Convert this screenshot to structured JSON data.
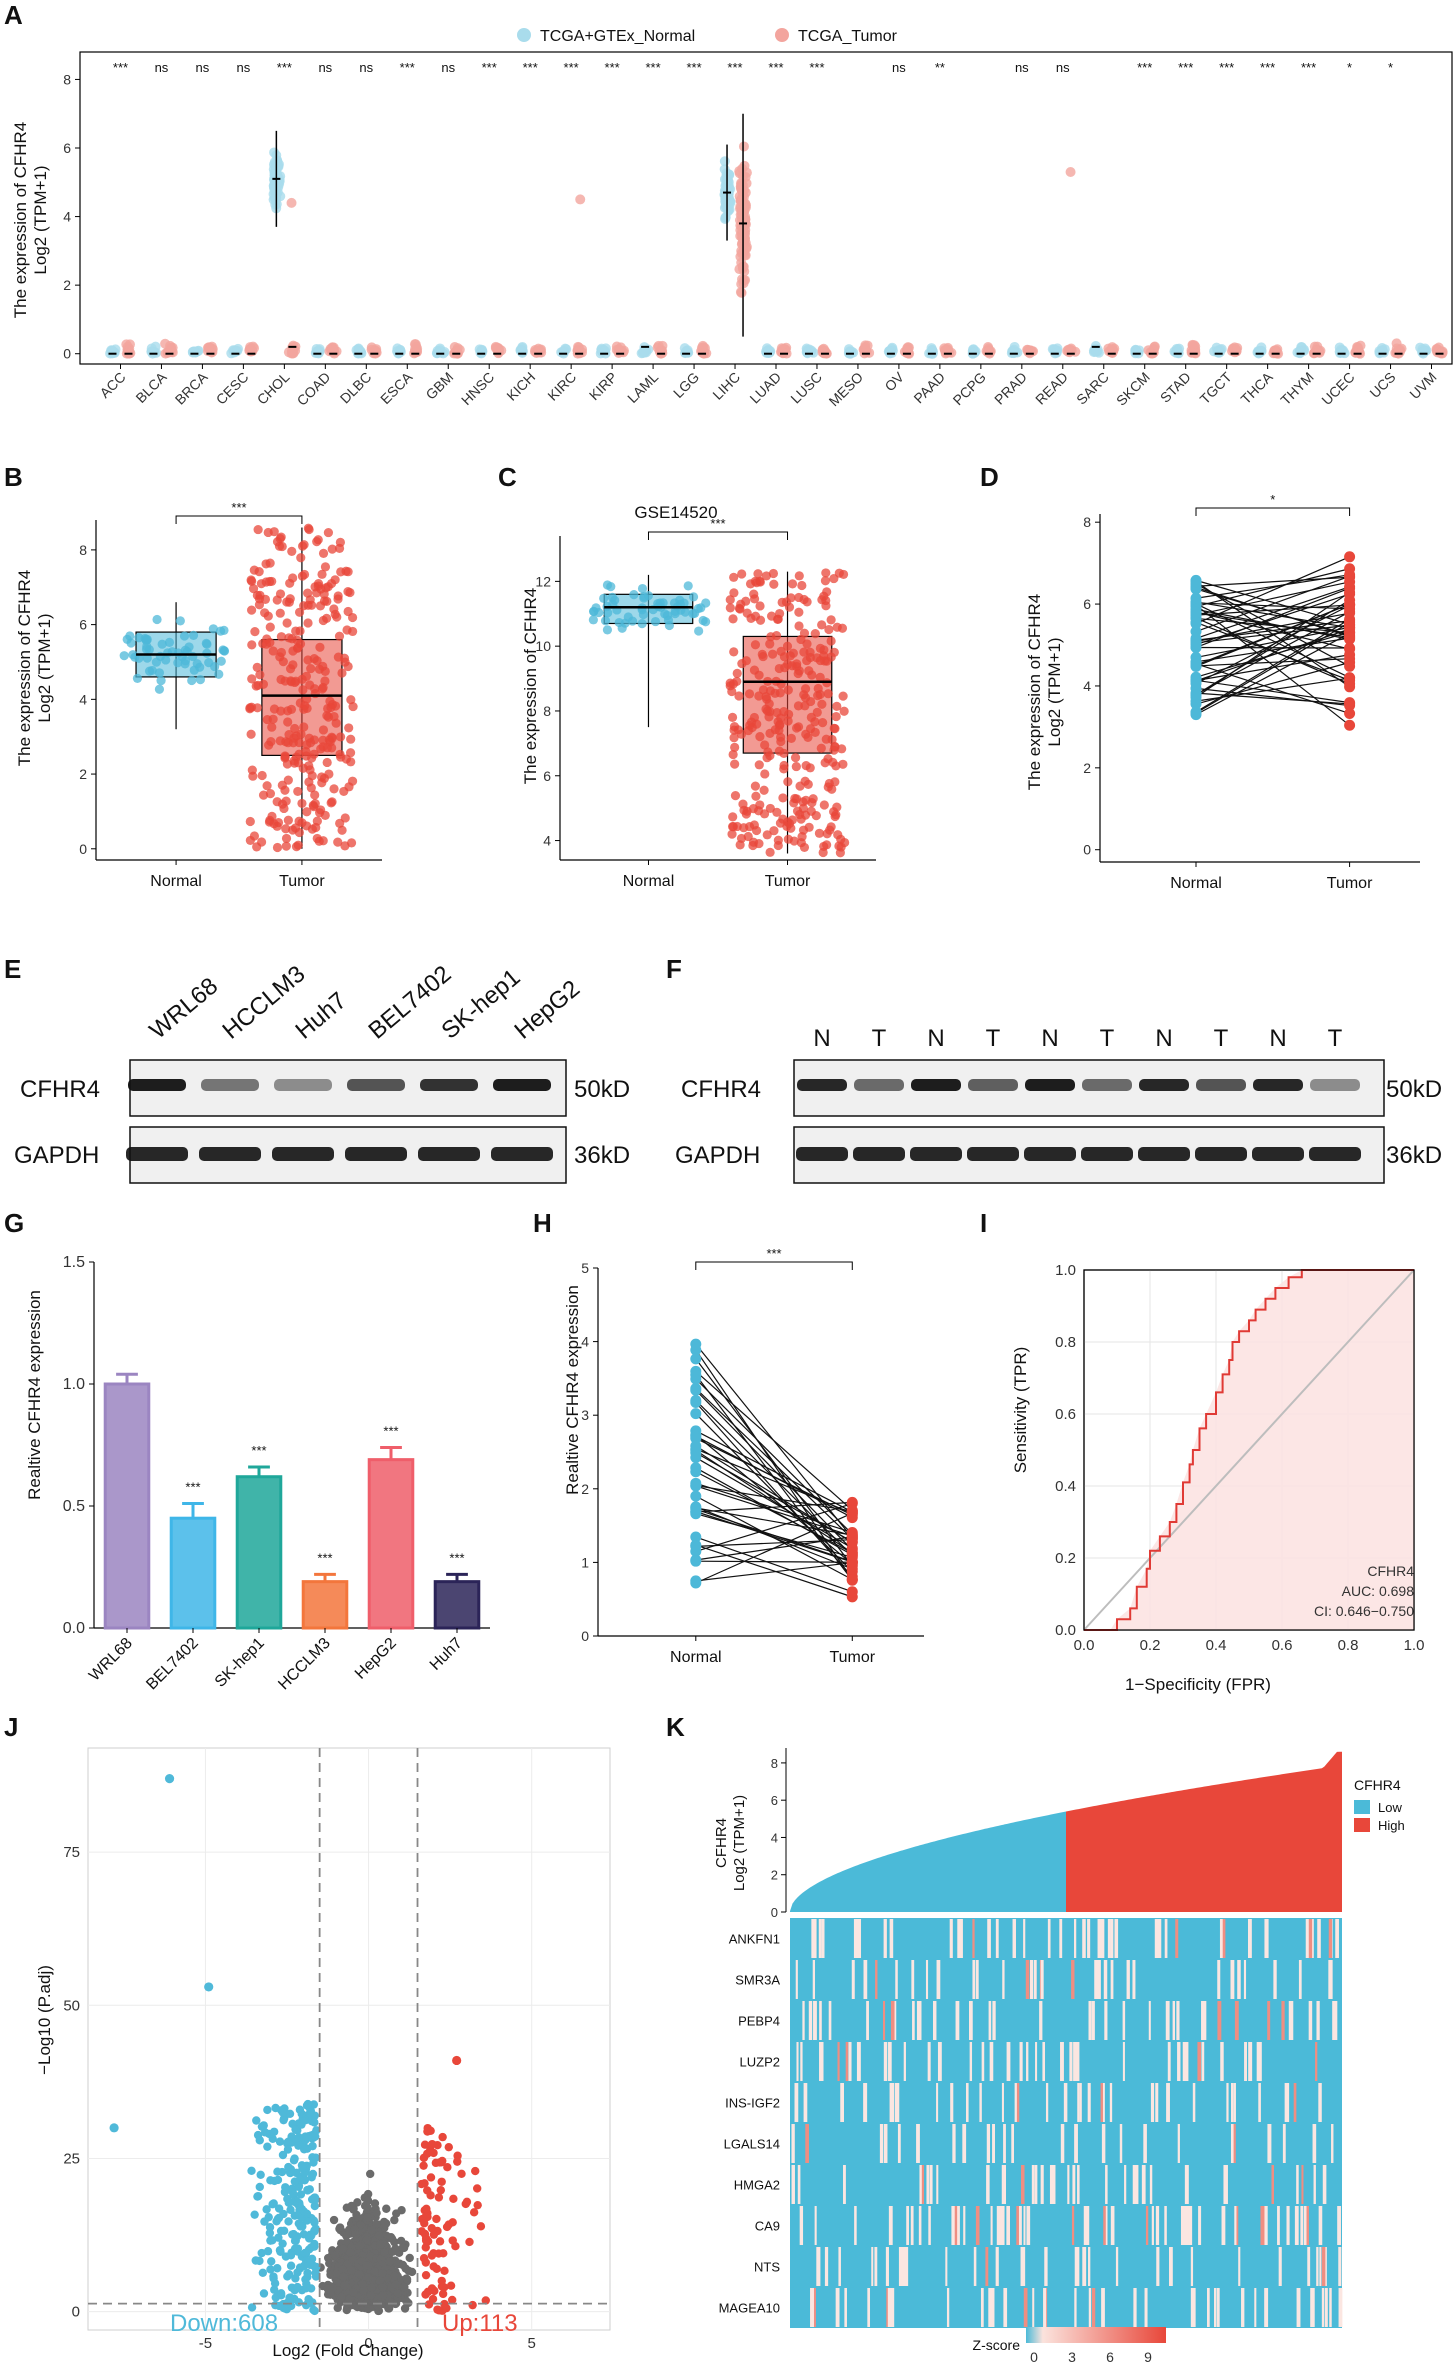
{
  "panel_labels": {
    "A": "A",
    "B": "B",
    "C": "C",
    "D": "D",
    "E": "E",
    "F": "F",
    "G": "G",
    "H": "H",
    "I": "I",
    "J": "J",
    "K": "K"
  },
  "colors": {
    "normal": "#4db8d8",
    "tumor": "#e8473a",
    "normal_light": "#a9dcec",
    "tumor_light": "#f3a59e"
  },
  "chart_data": [
    {
      "panel": "A",
      "type": "scatter",
      "legend": [
        "TCGA+GTEx_Normal",
        "TCGA_Tumor"
      ],
      "ylabel_line1": "The expression of CFHR4",
      "ylabel_line2": "Log2 (TPM+1)",
      "yticks": [
        0,
        2,
        4,
        6,
        8
      ],
      "ylim": [
        -0.3,
        8.8
      ],
      "categories": [
        "ACC",
        "BLCA",
        "BRCA",
        "CESC",
        "CHOL",
        "COAD",
        "DLBC",
        "ESCA",
        "GBM",
        "HNSC",
        "KICH",
        "KIRC",
        "KIRP",
        "LAML",
        "LGG",
        "LIHC",
        "LUAD",
        "LUSC",
        "MESO",
        "OV",
        "PAAD",
        "PCPG",
        "PRAD",
        "READ",
        "SARC",
        "SKCM",
        "STAD",
        "TGCT",
        "THCA",
        "THYM",
        "UCEC",
        "UCS",
        "UVM"
      ],
      "significance": [
        "***",
        "ns",
        "ns",
        "ns",
        "***",
        "ns",
        "ns",
        "***",
        "ns",
        "***",
        "***",
        "***",
        "***",
        "***",
        "***",
        "***",
        "***",
        "***",
        "",
        "ns",
        "**",
        "",
        "ns",
        "ns",
        "",
        "***",
        "***",
        "***",
        "***",
        "***",
        "*",
        "*",
        ""
      ],
      "normal_median": [
        0,
        0,
        0,
        0,
        5.1,
        0,
        0,
        0,
        0,
        0,
        0,
        0,
        0,
        0.2,
        0,
        4.7,
        0,
        0,
        0,
        0,
        0,
        0,
        0,
        0,
        0.2,
        0,
        0,
        0,
        0,
        0,
        0,
        0,
        0
      ],
      "tumor_median": [
        0,
        0,
        0,
        0,
        0.2,
        0,
        0,
        0,
        0,
        0,
        0,
        0,
        0,
        0,
        0,
        3.8,
        0,
        0,
        0,
        0,
        0,
        0,
        0,
        0,
        0,
        0,
        0,
        0,
        0,
        0,
        0,
        0,
        0
      ]
    },
    {
      "panel": "B",
      "type": "box",
      "categories": [
        "Normal",
        "Tumor"
      ],
      "ylabel_line1": "The expression of CFHR4",
      "ylabel_line2": "Log2 (TPM+1)",
      "yticks": [
        0,
        2,
        4,
        6,
        8
      ],
      "ylim": [
        -0.3,
        8.8
      ],
      "significance": "***",
      "box": [
        {
          "min": 3.2,
          "q1": 4.6,
          "median": 5.2,
          "q3": 5.8,
          "max": 6.6
        },
        {
          "min": 0,
          "q1": 2.5,
          "median": 4.1,
          "q3": 5.6,
          "max": 8.6
        }
      ]
    },
    {
      "panel": "C",
      "type": "box",
      "title": "GSE14520",
      "categories": [
        "Normal",
        "Tumor"
      ],
      "ylabel": "The expression of CFHR4",
      "yticks": [
        4,
        6,
        8,
        10,
        12
      ],
      "ylim": [
        3.4,
        13.4
      ],
      "significance": "***",
      "box": [
        {
          "min": 7.5,
          "q1": 10.7,
          "median": 11.2,
          "q3": 11.6,
          "max": 12.2
        },
        {
          "min": 3.6,
          "q1": 6.7,
          "median": 8.9,
          "q3": 10.3,
          "max": 12.3
        }
      ]
    },
    {
      "panel": "D",
      "type": "paired-line",
      "categories": [
        "Normal",
        "Tumor"
      ],
      "ylabel_line1": "The expression of CFHR4",
      "ylabel_line2": "Log2 (TPM+1)",
      "yticks": [
        0,
        2,
        4,
        6,
        8
      ],
      "ylim": [
        -0.3,
        8.2
      ],
      "significance": "*"
    },
    {
      "panel": "G",
      "type": "bar",
      "categories": [
        "WRL68",
        "BEL7402",
        "SK-hep1",
        "HCCLM3",
        "HepG2",
        "Huh7"
      ],
      "values": [
        1.0,
        0.45,
        0.62,
        0.19,
        0.69,
        0.19
      ],
      "errors": [
        0.04,
        0.06,
        0.04,
        0.03,
        0.05,
        0.03
      ],
      "bar_colors": [
        "#9b85c1",
        "#3fb6e8",
        "#1fa79a",
        "#f3763c",
        "#ef5e6a",
        "#2b2458"
      ],
      "significance": [
        "",
        "***",
        "***",
        "***",
        "***",
        "***"
      ],
      "ylabel": "Realtive CFHR4 expression",
      "yticks": [
        "0.0",
        "0.5",
        "1.0",
        "1.5"
      ],
      "ylim": [
        0,
        1.5
      ]
    },
    {
      "panel": "H",
      "type": "paired-line",
      "categories": [
        "Normal",
        "Tumor"
      ],
      "ylabel": "Realtive CFHR4 expression",
      "yticks": [
        0,
        1,
        2,
        3,
        4,
        5
      ],
      "ylim": [
        0,
        5
      ],
      "significance": "***"
    },
    {
      "panel": "I",
      "type": "line",
      "title_legend": "CFHR4",
      "auc": "AUC: 0.698",
      "ci": "CI: 0.646−0.750",
      "xlabel": "1−Specificity (FPR)",
      "ylabel": "Sensitivity (TPR)",
      "ticks": [
        "0.0",
        "0.2",
        "0.4",
        "0.6",
        "0.8",
        "1.0"
      ],
      "xlim": [
        0,
        1
      ],
      "ylim": [
        0,
        1
      ],
      "x": [
        0,
        0.08,
        0.1,
        0.14,
        0.16,
        0.19,
        0.2,
        0.23,
        0.26,
        0.28,
        0.3,
        0.32,
        0.33,
        0.35,
        0.37,
        0.4,
        0.42,
        0.44,
        0.45,
        0.47,
        0.5,
        0.52,
        0.55,
        0.58,
        0.62,
        0.66,
        0.7,
        1.0
      ],
      "y": [
        0,
        0,
        0.03,
        0.06,
        0.12,
        0.17,
        0.22,
        0.26,
        0.3,
        0.35,
        0.41,
        0.46,
        0.5,
        0.56,
        0.6,
        0.66,
        0.71,
        0.75,
        0.8,
        0.83,
        0.86,
        0.89,
        0.92,
        0.95,
        0.98,
        1.0,
        1.0,
        1.0
      ]
    },
    {
      "panel": "J",
      "type": "scatter",
      "xlabel": "Log2 (Fold Change)",
      "ylabel": "−Log10 (P.adj)",
      "xticks": [
        "-5",
        "0",
        "5"
      ],
      "yticks": [
        "0",
        "25",
        "50",
        "75"
      ],
      "xlim": [
        -8.6,
        7.4
      ],
      "ylim": [
        -3,
        92
      ],
      "down_label": "Down:608",
      "up_label": "Up:113",
      "down_color": "#4fb9d9",
      "up_color": "#e8473a",
      "ns_color": "#6b6b6b"
    },
    {
      "panel": "K",
      "type": "heatmap",
      "top_ylabel_line1": "CFHR4",
      "top_ylabel_line2": "Log2 (TPM+1)",
      "top_yticks": [
        "0",
        "2",
        "4",
        "6",
        "8"
      ],
      "legend_title": "CFHR4",
      "legend_items": [
        "Low",
        "High"
      ],
      "genes": [
        "ANKFN1",
        "SMR3A",
        "PEBP4",
        "LUZP2",
        "INS-IGF2",
        "LGALS14",
        "HMGA2",
        "CA9",
        "NTS",
        "MAGEA10"
      ],
      "zscore_label": "Z-score",
      "zscore_ticks": [
        "0",
        "3",
        "6",
        "9"
      ]
    }
  ],
  "blotE": {
    "lanes": [
      "WRL68",
      "HCCLM3",
      "Huh7",
      "BEL7402",
      "SK-hep1",
      "HepG2"
    ],
    "rows": [
      "CFHR4",
      "GAPDH"
    ],
    "sizes": [
      "50kD",
      "36kD"
    ]
  },
  "blotF": {
    "lanes": [
      "N",
      "T",
      "N",
      "T",
      "N",
      "T",
      "N",
      "T",
      "N",
      "T"
    ],
    "rows": [
      "CFHR4",
      "GAPDH"
    ],
    "sizes": [
      "50kD",
      "36kD"
    ]
  }
}
